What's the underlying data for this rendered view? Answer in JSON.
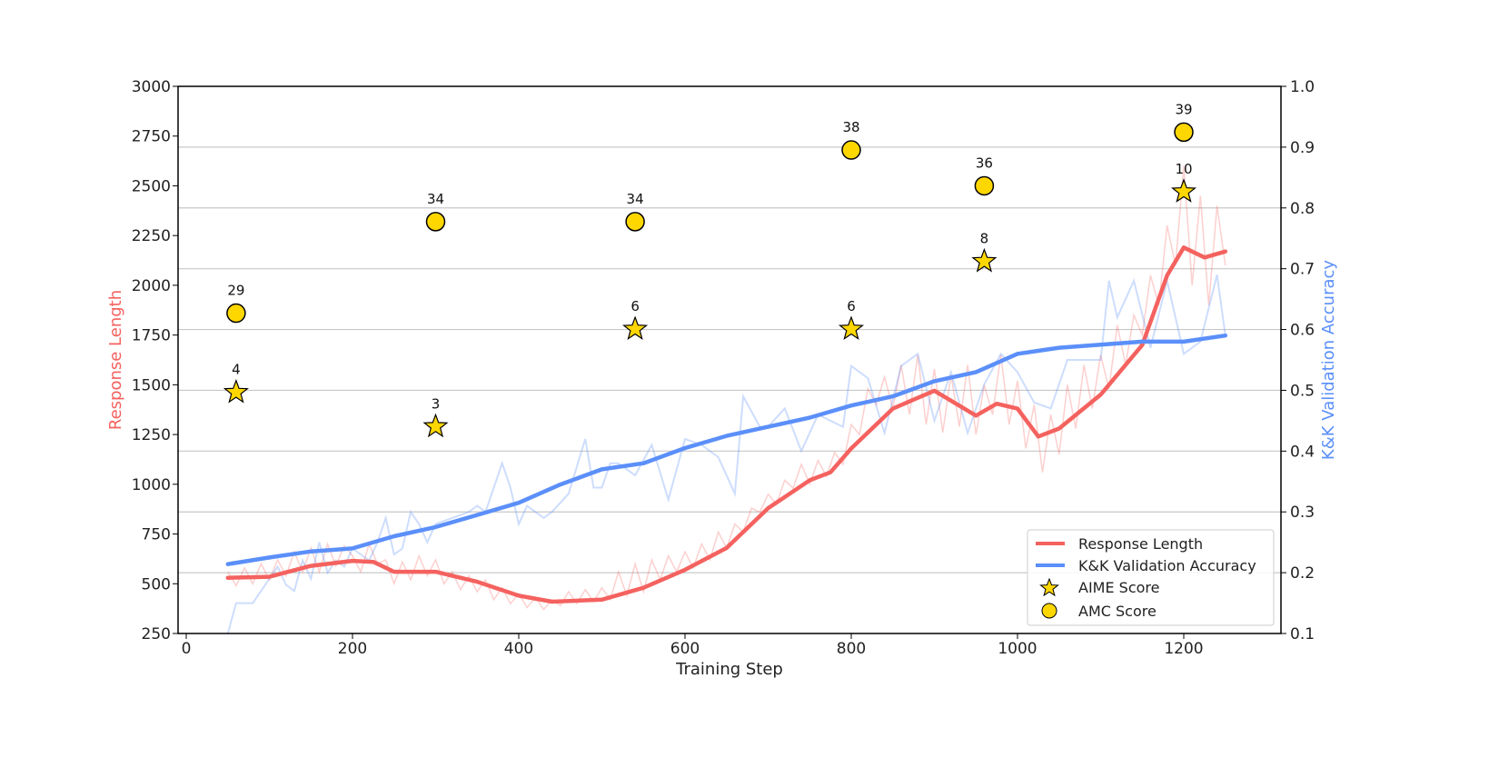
{
  "chart_data": {
    "type": "line",
    "xlabel": "Training Step",
    "ylabel_left": "Response Length",
    "ylabel_right": "K&K Validation Accuracy",
    "xlim": [
      -10,
      1310
    ],
    "ylim_left": [
      250,
      3000
    ],
    "ylim_right": [
      0.1,
      1.0
    ],
    "x_ticks": [
      0,
      200,
      400,
      600,
      800,
      1000,
      1200
    ],
    "y_ticks_left": [
      250,
      500,
      750,
      1000,
      1250,
      1500,
      1750,
      2000,
      2250,
      2500,
      2750,
      3000
    ],
    "y_ticks_right": [
      0.1,
      0.2,
      0.3,
      0.4,
      0.5,
      0.6,
      0.7,
      0.8,
      0.9,
      1.0
    ],
    "grid": "horizontal, right axis",
    "legend_placement": "lower right",
    "colors": {
      "response": "#f4625f",
      "accuracy": "#5b8ff9",
      "marker_fill": "#ffd700",
      "label_left": "#f4625f",
      "label_right": "#5b8ff9"
    },
    "series": [
      {
        "name": "Response Length",
        "axis": "left",
        "smoothed": true,
        "x": [
          50,
          100,
          150,
          200,
          225,
          250,
          300,
          350,
          400,
          440,
          500,
          550,
          600,
          650,
          700,
          750,
          775,
          800,
          850,
          900,
          950,
          975,
          1000,
          1025,
          1050,
          1100,
          1150,
          1180,
          1200,
          1225,
          1250
        ],
        "y": [
          530,
          535,
          590,
          615,
          610,
          560,
          560,
          510,
          440,
          410,
          420,
          480,
          570,
          680,
          880,
          1020,
          1060,
          1180,
          1380,
          1470,
          1345,
          1405,
          1380,
          1240,
          1280,
          1450,
          1700,
          2050,
          2190,
          2140,
          2170
        ]
      },
      {
        "name": "K&K Validation Accuracy",
        "axis": "right",
        "smoothed": true,
        "x": [
          50,
          100,
          150,
          200,
          250,
          300,
          350,
          400,
          450,
          500,
          550,
          600,
          650,
          700,
          750,
          800,
          850,
          900,
          950,
          1000,
          1050,
          1100,
          1150,
          1200,
          1250
        ],
        "y": [
          0.214,
          0.225,
          0.235,
          0.24,
          0.26,
          0.275,
          0.295,
          0.315,
          0.345,
          0.37,
          0.38,
          0.405,
          0.425,
          0.44,
          0.455,
          0.475,
          0.49,
          0.515,
          0.53,
          0.56,
          0.57,
          0.575,
          0.58,
          0.58,
          0.59
        ]
      },
      {
        "axis": "left",
        "raw": true,
        "x": [
          50,
          60,
          70,
          80,
          90,
          100,
          110,
          120,
          130,
          140,
          150,
          160,
          170,
          180,
          190,
          200,
          210,
          220,
          230,
          240,
          250,
          260,
          270,
          280,
          290,
          300,
          310,
          320,
          330,
          340,
          350,
          360,
          370,
          380,
          390,
          400,
          410,
          420,
          430,
          440,
          450,
          460,
          470,
          480,
          490,
          500,
          510,
          520,
          530,
          540,
          550,
          560,
          570,
          580,
          590,
          600,
          610,
          620,
          630,
          640,
          650,
          660,
          670,
          680,
          690,
          700,
          710,
          720,
          730,
          740,
          750,
          760,
          770,
          780,
          790,
          800,
          810,
          820,
          830,
          840,
          850,
          860,
          870,
          880,
          890,
          900,
          910,
          920,
          930,
          940,
          950,
          960,
          970,
          980,
          990,
          1000,
          1010,
          1020,
          1030,
          1040,
          1050,
          1060,
          1070,
          1080,
          1090,
          1100,
          1110,
          1120,
          1130,
          1140,
          1150,
          1160,
          1170,
          1180,
          1190,
          1200,
          1210,
          1220,
          1230,
          1240,
          1250
        ],
        "y": [
          560,
          490,
          580,
          500,
          600,
          520,
          620,
          540,
          660,
          560,
          680,
          560,
          700,
          590,
          690,
          640,
          560,
          700,
          600,
          620,
          500,
          610,
          520,
          640,
          540,
          620,
          500,
          560,
          470,
          540,
          460,
          520,
          420,
          480,
          400,
          450,
          380,
          430,
          370,
          420,
          390,
          460,
          400,
          470,
          410,
          480,
          420,
          560,
          440,
          600,
          460,
          620,
          520,
          640,
          560,
          660,
          580,
          700,
          620,
          760,
          680,
          800,
          760,
          880,
          860,
          950,
          900,
          1020,
          980,
          1100,
          1000,
          1120,
          1040,
          1160,
          1100,
          1300,
          1250,
          1480,
          1400,
          1540,
          1380,
          1600,
          1350,
          1650,
          1300,
          1580,
          1260,
          1550,
          1290,
          1600,
          1250,
          1500,
          1350,
          1650,
          1300,
          1520,
          1180,
          1400,
          1060,
          1350,
          1150,
          1500,
          1280,
          1600,
          1380,
          1650,
          1480,
          1800,
          1600,
          1850,
          1750,
          2050,
          1900,
          2300,
          2100,
          2600,
          2000,
          2450,
          1900,
          2400,
          2100
        ]
      },
      {
        "axis": "right",
        "raw": true,
        "x": [
          50,
          60,
          80,
          100,
          110,
          120,
          130,
          140,
          150,
          160,
          170,
          180,
          190,
          200,
          210,
          220,
          230,
          240,
          250,
          260,
          270,
          280,
          290,
          300,
          320,
          340,
          350,
          360,
          380,
          390,
          400,
          410,
          420,
          430,
          440,
          460,
          480,
          490,
          500,
          510,
          520,
          540,
          560,
          580,
          600,
          620,
          640,
          660,
          670,
          690,
          700,
          720,
          740,
          760,
          790,
          800,
          820,
          840,
          860,
          880,
          900,
          920,
          940,
          960,
          980,
          1000,
          1020,
          1040,
          1060,
          1080,
          1100,
          1110,
          1120,
          1140,
          1160,
          1180,
          1200,
          1220,
          1240,
          1250
        ],
        "y": [
          0.1,
          0.15,
          0.15,
          0.19,
          0.21,
          0.18,
          0.17,
          0.22,
          0.19,
          0.25,
          0.2,
          0.22,
          0.21,
          0.24,
          0.23,
          0.22,
          0.25,
          0.29,
          0.23,
          0.24,
          0.3,
          0.28,
          0.25,
          0.28,
          0.29,
          0.3,
          0.31,
          0.3,
          0.38,
          0.34,
          0.28,
          0.31,
          0.3,
          0.29,
          0.3,
          0.33,
          0.42,
          0.34,
          0.34,
          0.38,
          0.38,
          0.36,
          0.41,
          0.32,
          0.42,
          0.41,
          0.39,
          0.33,
          0.49,
          0.44,
          0.44,
          0.47,
          0.4,
          0.46,
          0.44,
          0.54,
          0.52,
          0.43,
          0.54,
          0.56,
          0.45,
          0.53,
          0.43,
          0.51,
          0.56,
          0.53,
          0.48,
          0.47,
          0.55,
          0.55,
          0.55,
          0.68,
          0.62,
          0.68,
          0.57,
          0.68,
          0.56,
          0.58,
          0.69,
          0.59
        ]
      }
    ],
    "markers": [
      {
        "name": "AIME Score",
        "shape": "star",
        "axis": "left",
        "points": [
          {
            "x": 60,
            "y": 1462,
            "label": "4"
          },
          {
            "x": 300,
            "y": 1290,
            "label": "3"
          },
          {
            "x": 540,
            "y": 1780,
            "label": "6"
          },
          {
            "x": 800,
            "y": 1780,
            "label": "6"
          },
          {
            "x": 960,
            "y": 2120,
            "label": "8"
          },
          {
            "x": 1200,
            "y": 2470,
            "label": "10"
          }
        ]
      },
      {
        "name": "AMC Score",
        "shape": "circle",
        "axis": "left",
        "points": [
          {
            "x": 60,
            "y": 1860,
            "label": "29"
          },
          {
            "x": 300,
            "y": 2320,
            "label": "34"
          },
          {
            "x": 540,
            "y": 2320,
            "label": "34"
          },
          {
            "x": 800,
            "y": 2680,
            "label": "38"
          },
          {
            "x": 960,
            "y": 2500,
            "label": "36"
          },
          {
            "x": 1200,
            "y": 2770,
            "label": "39"
          }
        ]
      }
    ],
    "legend": [
      "Response Length",
      "K&K Validation Accuracy",
      "AIME Score",
      "AMC Score"
    ]
  }
}
